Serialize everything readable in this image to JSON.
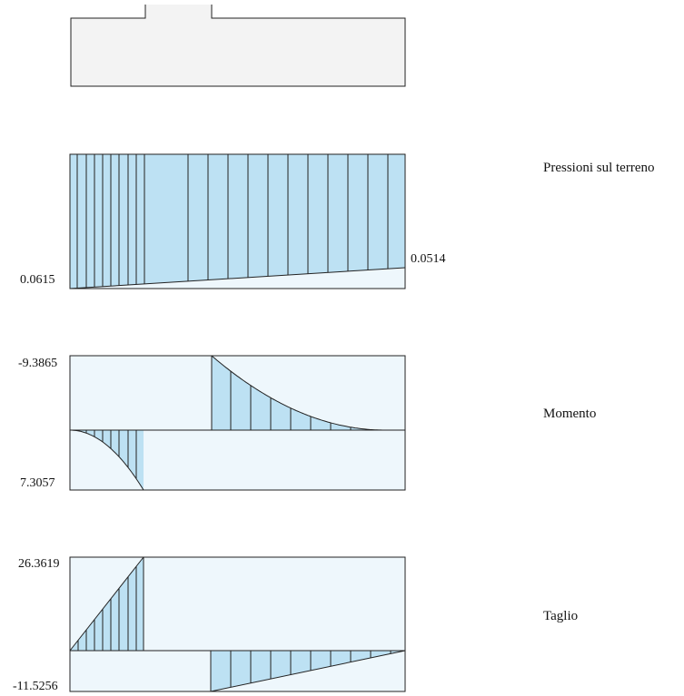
{
  "colors": {
    "diagram_fill": "#bde1f3",
    "diagram_bg": "#eef7fc",
    "foundation_fill": "#f3f3f3",
    "line": "#222222"
  },
  "diagrams": {
    "pressure": {
      "title": "Pressioni sul terreno",
      "left_value": "0.0615",
      "right_value": "0.0514",
      "left_num": 0.0615,
      "right_num": 0.0514
    },
    "moment": {
      "title": "Momento",
      "top_value": "-9.3865",
      "bottom_value": "7.3057",
      "max_negative": -9.3865,
      "max_positive": 7.3057
    },
    "shear": {
      "title": "Taglio",
      "top_value": "26.3619",
      "bottom_value": "-11.5256",
      "max_positive": 26.3619,
      "min_negative": -11.5256
    }
  }
}
